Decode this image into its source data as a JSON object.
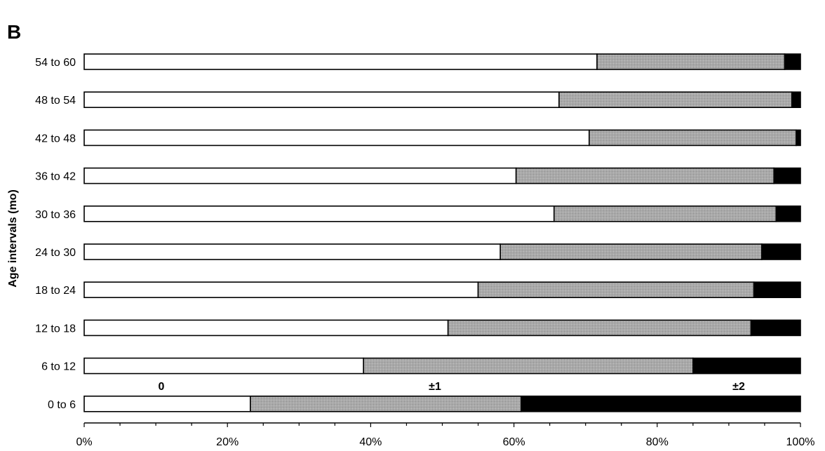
{
  "panel_label": "B",
  "chart_data": {
    "type": "bar",
    "orientation": "horizontal",
    "stacked": true,
    "percent_stacked": true,
    "ylabel": "Age intervals (mo)",
    "xlabel": "",
    "xlim": [
      0,
      100
    ],
    "x_ticks": [
      "0%",
      "20%",
      "40%",
      "60%",
      "80%",
      "100%"
    ],
    "categories": [
      "54 to 60",
      "48 to 54",
      "42 to 48",
      "36 to 42",
      "30 to 36",
      "24 to 30",
      "18 to 24",
      "12 to 18",
      "6 to 12",
      "0 to 6"
    ],
    "series": [
      {
        "name": "0",
        "color": "#ffffff",
        "values": [
          71.6,
          66.3,
          70.5,
          60.3,
          65.6,
          58.1,
          55.0,
          50.8,
          39.0,
          23.2
        ]
      },
      {
        "name": "±1",
        "color": "#a9a9a9",
        "values": [
          26.2,
          32.5,
          28.9,
          36.0,
          31.0,
          36.5,
          38.5,
          42.3,
          46.0,
          37.8
        ]
      },
      {
        "name": "±2",
        "color": "#000000",
        "values": [
          2.2,
          1.2,
          0.6,
          3.7,
          3.4,
          5.4,
          6.5,
          6.9,
          15.0,
          39.0
        ]
      }
    ],
    "legend_placement": "inline above bottom bar",
    "grid": false
  }
}
